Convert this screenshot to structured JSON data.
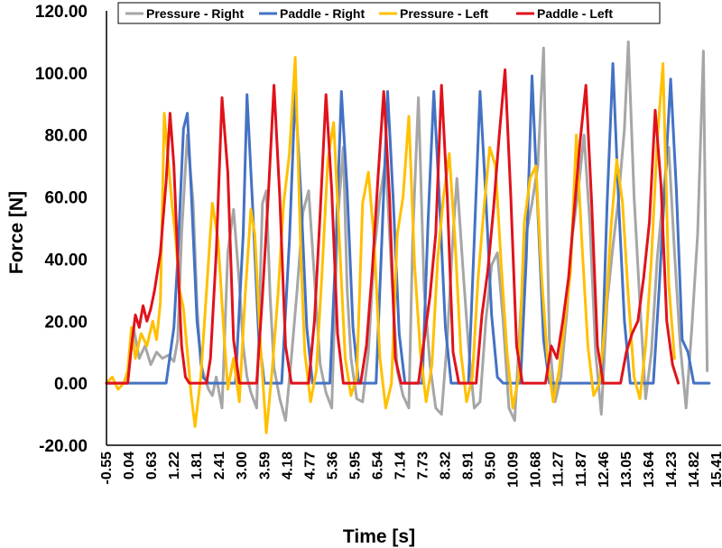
{
  "chart_data": {
    "type": "line",
    "title": "",
    "xlabel": "Time [s]",
    "ylabel": "Force [N]",
    "xlim": [
      -0.55,
      15.41
    ],
    "ylim": [
      -20,
      120
    ],
    "y_ticks": [
      "-20.00",
      "0.00",
      "20.00",
      "40.00",
      "60.00",
      "80.00",
      "100.00",
      "120.00"
    ],
    "x_ticks": [
      "-0.55",
      "0.04",
      "0.63",
      "1.22",
      "1.81",
      "2.41",
      "3.00",
      "3.59",
      "4.18",
      "4.77",
      "5.36",
      "5.95",
      "6.54",
      "7.14",
      "7.73",
      "8.32",
      "8.91",
      "9.50",
      "10.09",
      "10.68",
      "11.27",
      "11.87",
      "12.46",
      "13.05",
      "13.64",
      "14.23",
      "14.82",
      "15.41"
    ],
    "grid": false,
    "legend_position": "top",
    "series": [
      {
        "name": "Pressure - Right",
        "color": "#a6a6a6",
        "x": [
          -0.55,
          -0.3,
          0.0,
          0.15,
          0.3,
          0.45,
          0.6,
          0.75,
          0.9,
          1.05,
          1.2,
          1.3,
          1.4,
          1.55,
          1.7,
          1.8,
          1.9,
          2.0,
          2.1,
          2.2,
          2.3,
          2.45,
          2.6,
          2.75,
          2.9,
          3.0,
          3.1,
          3.2,
          3.35,
          3.5,
          3.6,
          3.7,
          3.8,
          3.95,
          4.1,
          4.25,
          4.4,
          4.55,
          4.7,
          4.85,
          5.0,
          5.15,
          5.3,
          5.45,
          5.6,
          5.7,
          5.8,
          5.95,
          6.1,
          6.25,
          6.4,
          6.55,
          6.7,
          6.85,
          7.0,
          7.15,
          7.3,
          7.4,
          7.55,
          7.7,
          7.85,
          8.0,
          8.15,
          8.3,
          8.45,
          8.55,
          8.7,
          8.85,
          9.0,
          9.15,
          9.3,
          9.45,
          9.6,
          9.75,
          9.9,
          10.05,
          10.2,
          10.35,
          10.5,
          10.65,
          10.8,
          10.95,
          11.1,
          11.25,
          11.4,
          11.55,
          11.7,
          11.85,
          12.0,
          12.15,
          12.3,
          12.45,
          12.6,
          12.75,
          12.9,
          13.0,
          13.15,
          13.3,
          13.45,
          13.6,
          13.75,
          13.9,
          14.05,
          14.2,
          14.35,
          14.5,
          14.65,
          14.8,
          14.95,
          15.05
        ],
        "values": [
          0,
          0,
          0,
          18,
          8,
          12,
          6,
          10,
          8,
          9,
          7,
          14,
          48,
          80,
          58,
          25,
          6,
          2,
          -2,
          -4,
          2,
          -8,
          42,
          56,
          32,
          12,
          2,
          -3,
          -8,
          58,
          62,
          28,
          5,
          -5,
          -12,
          8,
          30,
          55,
          62,
          34,
          6,
          -3,
          -8,
          52,
          76,
          30,
          8,
          -5,
          -6,
          10,
          42,
          60,
          72,
          36,
          4,
          -4,
          -8,
          46,
          92,
          30,
          6,
          -8,
          -10,
          14,
          48,
          66,
          38,
          12,
          -8,
          -6,
          20,
          38,
          42,
          20,
          -8,
          -12,
          22,
          48,
          58,
          70,
          108,
          14,
          -6,
          2,
          22,
          48,
          62,
          80,
          52,
          10,
          -10,
          26,
          44,
          60,
          82,
          110,
          60,
          26,
          -5,
          10,
          40,
          60,
          76,
          42,
          12,
          -8,
          18,
          48,
          107,
          4
        ]
      },
      {
        "name": "Paddle - Right",
        "color": "#4472c4",
        "x": [
          -0.55,
          0.3,
          0.5,
          0.7,
          0.85,
          1.0,
          1.2,
          1.3,
          1.45,
          1.55,
          1.65,
          1.8,
          1.95,
          2.1,
          2.25,
          2.4,
          2.6,
          2.8,
          3.0,
          3.1,
          3.25,
          3.4,
          3.55,
          3.7,
          3.85,
          4.0,
          4.2,
          4.35,
          4.5,
          4.65,
          4.8,
          4.95,
          5.1,
          5.25,
          5.4,
          5.55,
          5.7,
          5.85,
          6.0,
          6.15,
          6.3,
          6.45,
          6.6,
          6.75,
          6.9,
          7.05,
          7.2,
          7.35,
          7.5,
          7.65,
          7.8,
          7.95,
          8.1,
          8.25,
          8.4,
          8.55,
          8.7,
          8.85,
          9.0,
          9.15,
          9.3,
          9.45,
          9.6,
          9.75,
          9.9,
          10.05,
          10.2,
          10.35,
          10.5,
          10.65,
          10.8,
          10.95,
          11.1,
          11.25,
          11.4,
          11.55,
          11.7,
          11.85,
          12.0,
          12.15,
          12.3,
          12.45,
          12.6,
          12.75,
          12.9,
          13.05,
          13.2,
          13.35,
          13.5,
          13.65,
          13.8,
          13.95,
          14.1,
          14.25,
          14.4,
          14.55,
          14.7,
          14.85,
          15.0,
          15.1
        ],
        "values": [
          0,
          0,
          0,
          0,
          0,
          0,
          18,
          40,
          82,
          87,
          62,
          20,
          2,
          0,
          0,
          0,
          0,
          0,
          48,
          93,
          56,
          16,
          0,
          0,
          0,
          0,
          46,
          94,
          60,
          18,
          0,
          0,
          0,
          0,
          42,
          94,
          62,
          18,
          0,
          0,
          0,
          0,
          46,
          94,
          58,
          16,
          0,
          0,
          0,
          0,
          52,
          94,
          58,
          18,
          0,
          0,
          0,
          0,
          46,
          94,
          60,
          22,
          2,
          0,
          0,
          0,
          0,
          40,
          99,
          56,
          14,
          0,
          0,
          0,
          0,
          0,
          0,
          0,
          0,
          0,
          0,
          58,
          103,
          58,
          20,
          0,
          0,
          0,
          0,
          0,
          30,
          64,
          98,
          62,
          14,
          10,
          0,
          0,
          0,
          0
        ]
      },
      {
        "name": "Pressure - Left",
        "color": "#ffc000",
        "x": [
          -0.55,
          -0.4,
          -0.25,
          -0.1,
          0.0,
          0.1,
          0.2,
          0.35,
          0.5,
          0.65,
          0.75,
          0.85,
          0.95,
          1.05,
          1.15,
          1.25,
          1.35,
          1.45,
          1.55,
          1.65,
          1.75,
          1.9,
          2.05,
          2.2,
          2.35,
          2.5,
          2.6,
          2.75,
          2.9,
          3.05,
          3.2,
          3.3,
          3.45,
          3.6,
          3.75,
          3.9,
          4.05,
          4.2,
          4.35,
          4.5,
          4.6,
          4.75,
          4.9,
          5.05,
          5.2,
          5.35,
          5.5,
          5.65,
          5.8,
          5.95,
          6.1,
          6.25,
          6.4,
          6.55,
          6.7,
          6.85,
          7.0,
          7.15,
          7.3,
          7.45,
          7.6,
          7.75,
          7.9,
          8.05,
          8.2,
          8.35,
          8.5,
          8.65,
          8.8,
          8.95,
          9.1,
          9.25,
          9.4,
          9.55,
          9.7,
          9.85,
          10.0,
          10.15,
          10.3,
          10.45,
          10.6,
          10.75,
          10.9,
          11.05,
          11.2,
          11.35,
          11.5,
          11.65,
          11.8,
          11.95,
          12.1,
          12.25,
          12.4,
          12.55,
          12.7,
          12.85,
          13.0,
          13.15,
          13.3,
          13.45,
          13.6,
          13.75,
          13.9,
          14.05,
          14.2
        ],
        "values": [
          0,
          2,
          -2,
          0,
          4,
          18,
          8,
          16,
          12,
          20,
          14,
          26,
          87,
          72,
          58,
          46,
          30,
          24,
          10,
          -4,
          -14,
          2,
          30,
          58,
          46,
          16,
          -2,
          8,
          -6,
          28,
          56,
          48,
          12,
          -16,
          4,
          28,
          58,
          74,
          105,
          40,
          10,
          -6,
          4,
          36,
          72,
          84,
          46,
          8,
          -4,
          2,
          58,
          68,
          46,
          8,
          -8,
          0,
          48,
          60,
          86,
          38,
          10,
          -6,
          6,
          40,
          60,
          74,
          46,
          10,
          -6,
          2,
          34,
          56,
          76,
          70,
          38,
          10,
          -8,
          2,
          52,
          66,
          70,
          34,
          8,
          -6,
          4,
          20,
          36,
          80,
          44,
          12,
          -4,
          0,
          20,
          50,
          72,
          58,
          28,
          2,
          -5,
          12,
          40,
          78,
          103,
          32,
          8
        ]
      },
      {
        "name": "Paddle - Left",
        "color": "#e0121b",
        "x": [
          -0.55,
          -0.3,
          0.0,
          0.1,
          0.2,
          0.3,
          0.4,
          0.5,
          0.6,
          0.7,
          0.85,
          1.0,
          1.1,
          1.2,
          1.3,
          1.4,
          1.5,
          1.6,
          1.75,
          1.9,
          2.05,
          2.15,
          2.3,
          2.45,
          2.6,
          2.75,
          2.9,
          3.05,
          3.2,
          3.35,
          3.5,
          3.65,
          3.8,
          3.95,
          4.1,
          4.25,
          4.4,
          4.55,
          4.7,
          4.85,
          5.0,
          5.15,
          5.3,
          5.45,
          5.6,
          5.75,
          5.9,
          6.05,
          6.2,
          6.35,
          6.5,
          6.65,
          6.8,
          6.95,
          7.1,
          7.25,
          7.4,
          7.55,
          7.7,
          7.85,
          8.0,
          8.15,
          8.3,
          8.45,
          8.6,
          8.75,
          8.9,
          9.05,
          9.2,
          9.35,
          9.5,
          9.65,
          9.8,
          9.95,
          10.1,
          10.25,
          10.4,
          10.55,
          10.7,
          10.85,
          11.0,
          11.15,
          11.3,
          11.45,
          11.6,
          11.75,
          11.9,
          12.05,
          12.2,
          12.35,
          12.5,
          12.65,
          12.8,
          12.95,
          13.1,
          13.25,
          13.4,
          13.55,
          13.7,
          13.85,
          14.0,
          14.15,
          14.3
        ],
        "values": [
          0,
          0,
          0,
          12,
          22,
          18,
          25,
          20,
          24,
          30,
          42,
          65,
          87,
          70,
          40,
          12,
          2,
          0,
          0,
          0,
          0,
          8,
          42,
          92,
          68,
          14,
          0,
          0,
          0,
          0,
          28,
          60,
          96,
          60,
          12,
          0,
          0,
          0,
          0,
          20,
          55,
          93,
          62,
          16,
          0,
          0,
          0,
          0,
          12,
          36,
          66,
          94,
          60,
          8,
          0,
          0,
          0,
          0,
          14,
          28,
          48,
          96,
          60,
          10,
          0,
          0,
          0,
          0,
          22,
          36,
          56,
          80,
          101,
          60,
          12,
          0,
          0,
          0,
          0,
          0,
          12,
          8,
          20,
          34,
          56,
          78,
          96,
          58,
          12,
          0,
          0,
          0,
          0,
          10,
          16,
          20,
          34,
          52,
          88,
          64,
          20,
          6,
          0
        ]
      }
    ]
  }
}
